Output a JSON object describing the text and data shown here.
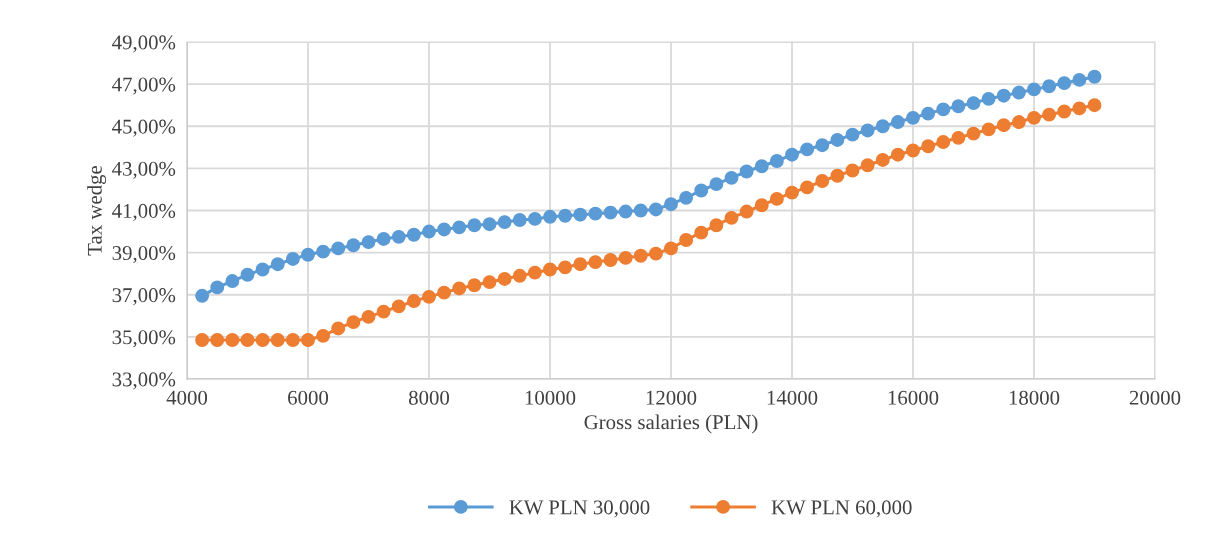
{
  "chart_data": {
    "type": "line",
    "xlabel": "Gross salaries (PLN)",
    "ylabel": "Tax wedge",
    "x": [
      4250,
      4500,
      4750,
      5000,
      5250,
      5500,
      5750,
      6000,
      6250,
      6500,
      6750,
      7000,
      7250,
      7500,
      7750,
      8000,
      8250,
      8500,
      8750,
      9000,
      9250,
      9500,
      9750,
      10000,
      10250,
      10500,
      10750,
      11000,
      11250,
      11500,
      11750,
      12000,
      12250,
      12500,
      12750,
      13000,
      13250,
      13500,
      13750,
      14000,
      14250,
      14500,
      14750,
      15000,
      15250,
      15500,
      15750,
      16000,
      16250,
      16500,
      16750,
      17000,
      17250,
      17500,
      17750,
      18000,
      18250,
      18500,
      18750,
      19000
    ],
    "series": [
      {
        "name": "KW PLN 30,000",
        "color": "#5b9bd5",
        "values": [
          36.95,
          37.35,
          37.65,
          37.95,
          38.2,
          38.45,
          38.7,
          38.9,
          39.05,
          39.2,
          39.35,
          39.5,
          39.65,
          39.75,
          39.85,
          40.0,
          40.1,
          40.2,
          40.3,
          40.35,
          40.45,
          40.55,
          40.6,
          40.7,
          40.75,
          40.8,
          40.85,
          40.9,
          40.95,
          41.0,
          41.05,
          41.3,
          41.6,
          41.95,
          42.25,
          42.55,
          42.85,
          43.1,
          43.35,
          43.65,
          43.9,
          44.1,
          44.35,
          44.6,
          44.8,
          45.0,
          45.2,
          45.4,
          45.6,
          45.8,
          45.95,
          46.1,
          46.3,
          46.45,
          46.6,
          46.75,
          46.9,
          47.05,
          47.2,
          47.35
        ]
      },
      {
        "name": "KW PLN 60,000",
        "color": "#ed7d31",
        "values": [
          34.85,
          34.85,
          34.85,
          34.85,
          34.85,
          34.85,
          34.85,
          34.85,
          35.05,
          35.4,
          35.7,
          35.95,
          36.2,
          36.45,
          36.7,
          36.9,
          37.1,
          37.3,
          37.45,
          37.6,
          37.75,
          37.9,
          38.05,
          38.2,
          38.3,
          38.45,
          38.55,
          38.65,
          38.75,
          38.85,
          38.95,
          39.2,
          39.6,
          39.95,
          40.3,
          40.65,
          40.95,
          41.25,
          41.55,
          41.85,
          42.1,
          42.4,
          42.65,
          42.9,
          43.15,
          43.4,
          43.65,
          43.85,
          44.05,
          44.25,
          44.45,
          44.65,
          44.85,
          45.05,
          45.2,
          45.4,
          45.55,
          45.7,
          45.85,
          46.0
        ]
      }
    ],
    "xlim": [
      4000,
      20000
    ],
    "xticks": [
      4000,
      6000,
      8000,
      10000,
      12000,
      14000,
      16000,
      18000,
      20000
    ],
    "ylim": [
      33,
      49
    ],
    "yticks": [
      {
        "value": 33,
        "label": "33,00%"
      },
      {
        "value": 35,
        "label": "35,00%"
      },
      {
        "value": 37,
        "label": "37,00%"
      },
      {
        "value": 39,
        "label": "39,00%"
      },
      {
        "value": 41,
        "label": "41,00%"
      },
      {
        "value": 43,
        "label": "43,00%"
      },
      {
        "value": 45,
        "label": "45,00%"
      },
      {
        "value": 47,
        "label": "47,00%"
      },
      {
        "value": 49,
        "label": "49,00%"
      }
    ],
    "grid": true,
    "legend": "bottom",
    "marker": "circle",
    "line_style": "solid"
  }
}
